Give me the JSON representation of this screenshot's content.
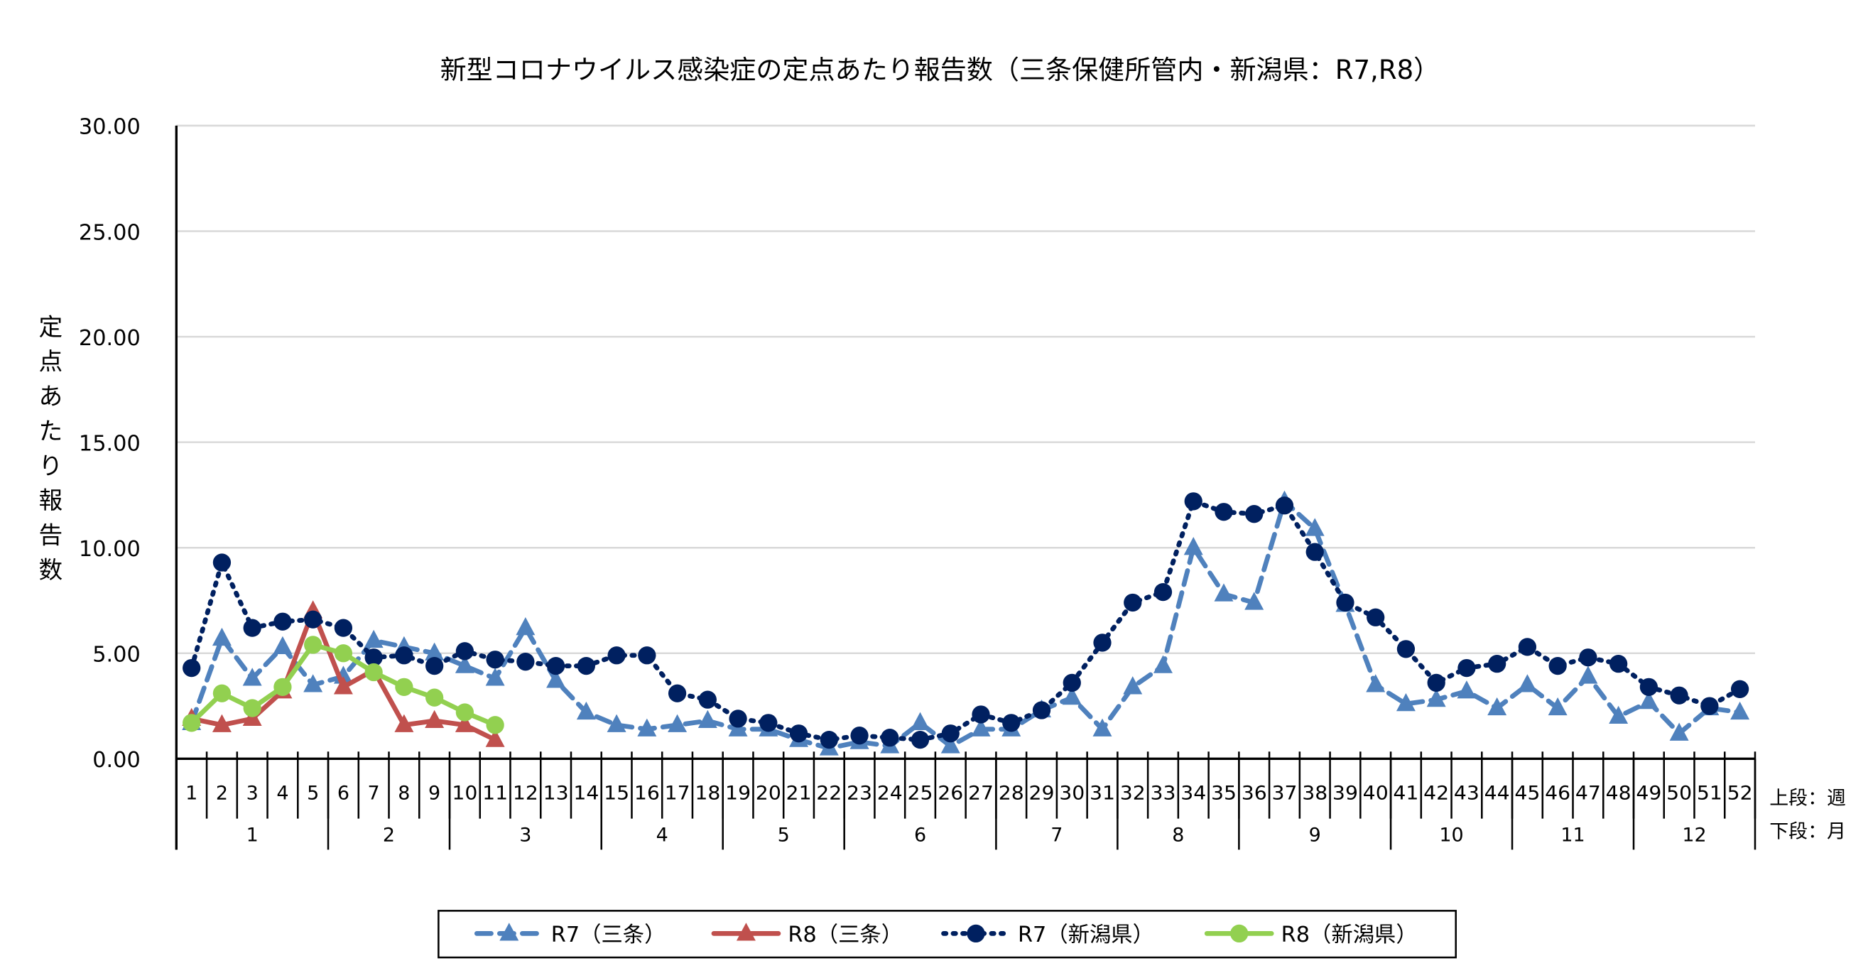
{
  "chart_data": {
    "type": "line",
    "title": "新型コロナウイルス感染症の定点あたり報告数（三条保健所管内・新潟県：R7,R8）",
    "ylabel": "定点あたり報告数",
    "ylim": [
      0,
      30
    ],
    "yticks": [
      "0.00",
      "5.00",
      "10.00",
      "15.00",
      "20.00",
      "25.00",
      "30.00"
    ],
    "grid": true,
    "legend_position": "bottom",
    "axis_note": [
      "上段：週",
      "下段：月"
    ],
    "weeks": [
      1,
      2,
      3,
      4,
      5,
      6,
      7,
      8,
      9,
      10,
      11,
      12,
      13,
      14,
      15,
      16,
      17,
      18,
      19,
      20,
      21,
      22,
      23,
      24,
      25,
      26,
      27,
      28,
      29,
      30,
      31,
      32,
      33,
      34,
      35,
      36,
      37,
      38,
      39,
      40,
      41,
      42,
      43,
      44,
      45,
      46,
      47,
      48,
      49,
      50,
      51,
      52
    ],
    "months": [
      {
        "label": "1",
        "weeks": [
          1,
          5
        ]
      },
      {
        "label": "2",
        "weeks": [
          6,
          9
        ]
      },
      {
        "label": "3",
        "weeks": [
          10,
          14
        ]
      },
      {
        "label": "4",
        "weeks": [
          15,
          18
        ]
      },
      {
        "label": "5",
        "weeks": [
          19,
          22
        ]
      },
      {
        "label": "6",
        "weeks": [
          23,
          27
        ]
      },
      {
        "label": "7",
        "weeks": [
          28,
          31
        ]
      },
      {
        "label": "8",
        "weeks": [
          32,
          35
        ]
      },
      {
        "label": "9",
        "weeks": [
          36,
          40
        ]
      },
      {
        "label": "10",
        "weeks": [
          41,
          44
        ]
      },
      {
        "label": "11",
        "weeks": [
          45,
          48
        ]
      },
      {
        "label": "12",
        "weeks": [
          49,
          52
        ]
      }
    ],
    "series": [
      {
        "name": "R7（三条）",
        "color": "#4f81bd",
        "style": "dash",
        "marker": "triangle",
        "values": [
          1.7,
          5.7,
          3.8,
          5.3,
          3.5,
          3.9,
          5.6,
          5.3,
          5.0,
          4.4,
          3.8,
          6.2,
          3.7,
          2.2,
          1.6,
          1.4,
          1.6,
          1.8,
          1.4,
          1.4,
          0.9,
          0.5,
          0.8,
          0.6,
          1.7,
          0.6,
          1.4,
          1.4,
          2.3,
          2.9,
          1.4,
          3.4,
          4.4,
          10.0,
          7.8,
          7.4,
          12.2,
          10.9,
          7.3,
          3.5,
          2.6,
          2.8,
          3.2,
          2.4,
          3.5,
          2.4,
          3.9,
          2.0,
          2.7,
          1.2,
          2.4,
          2.2
        ]
      },
      {
        "name": "R8（三条）",
        "color": "#c0504d",
        "style": "solid",
        "marker": "triangle",
        "values": [
          1.9,
          1.6,
          1.9,
          3.2,
          7.0,
          3.4,
          4.2,
          1.6,
          1.8,
          1.6,
          0.9
        ]
      },
      {
        "name": "R7（新潟県）",
        "color": "#002060",
        "style": "dot",
        "marker": "circle",
        "values": [
          4.3,
          9.3,
          6.2,
          6.5,
          6.6,
          6.2,
          4.8,
          4.9,
          4.4,
          5.1,
          4.7,
          4.6,
          4.4,
          4.4,
          4.9,
          4.9,
          3.1,
          2.8,
          1.9,
          1.7,
          1.2,
          0.9,
          1.1,
          1.0,
          0.9,
          1.2,
          2.1,
          1.7,
          2.3,
          3.6,
          5.5,
          7.4,
          7.9,
          12.2,
          11.7,
          11.6,
          12.0,
          9.8,
          7.4,
          6.7,
          5.2,
          3.6,
          4.3,
          4.5,
          5.3,
          4.4,
          4.8,
          4.5,
          3.4,
          3.0,
          2.5,
          3.3
        ]
      },
      {
        "name": "R8（新潟県）",
        "color": "#92d050",
        "style": "solid",
        "marker": "circle",
        "values": [
          1.7,
          3.1,
          2.4,
          3.4,
          5.4,
          5.0,
          4.1,
          3.4,
          2.9,
          2.2,
          1.6
        ]
      }
    ]
  }
}
